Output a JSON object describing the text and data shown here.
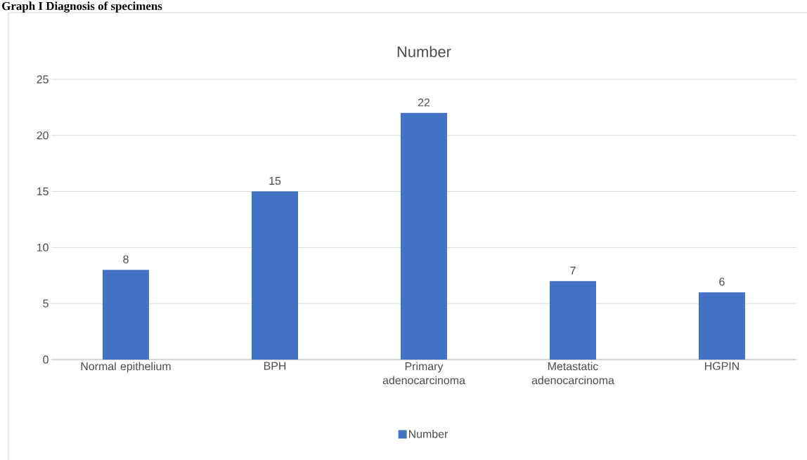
{
  "chart_data": {
    "type": "bar",
    "title": "Number",
    "annotations": [
      "Graph I Diagnosis of specimens"
    ],
    "categories": [
      "Normal epithelium",
      "BPH",
      "Primary adenocarcinoma",
      "Metastatic adenocarcinoma",
      "HGPIN"
    ],
    "series": [
      {
        "name": "Number",
        "color": "#4472c4",
        "values": [
          8,
          15,
          22,
          7,
          6
        ]
      }
    ],
    "ylim": [
      0,
      25
    ],
    "yticks": [
      0,
      5,
      10,
      15,
      20,
      25
    ],
    "grid": "y",
    "legend": "bottom",
    "data_labels": true
  }
}
